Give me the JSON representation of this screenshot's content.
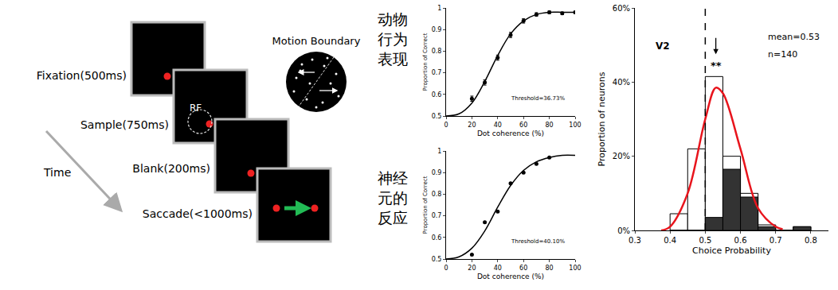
{
  "diagram": {
    "stages": [
      "Fixation(500ms)",
      "Sample(750ms)",
      "Blank(200ms)",
      "Saccade(<1000ms)"
    ],
    "time_label": "Time",
    "rf_label": "RF",
    "stimulus_label": "Motion Boundary",
    "behavior_label": [
      "动物",
      "行为",
      "表现"
    ],
    "neuron_label": [
      "神经",
      "元的",
      "反应"
    ]
  },
  "chart_data": [
    {
      "type": "scatter",
      "color": "#000000",
      "x": [
        20,
        30,
        40,
        50,
        60,
        70,
        80,
        90,
        100
      ],
      "values": [
        0.58,
        0.655,
        0.77,
        0.875,
        0.94,
        0.97,
        0.98,
        0.975,
        0.98
      ],
      "errors": [
        0.012,
        0.012,
        0.012,
        0.012,
        0.01,
        0.008,
        0.006,
        0.006,
        0.005
      ],
      "fit": {
        "x": [
          0,
          10,
          20,
          30,
          40,
          50,
          60,
          70,
          80,
          90,
          100
        ],
        "values": [
          0.5,
          0.51,
          0.56,
          0.66,
          0.78,
          0.88,
          0.94,
          0.97,
          0.98,
          0.98,
          0.98
        ]
      },
      "xlim": [
        0,
        100
      ],
      "ylim": [
        0.5,
        1
      ],
      "xticks": [
        0,
        20,
        40,
        60,
        80,
        100
      ],
      "yticks": [
        0.5,
        0.6,
        0.7,
        0.8,
        0.9,
        1
      ],
      "x_label": "Dot coherence (%)",
      "y_label": "Proportion of Correct",
      "annotation": "Threshold=36.73%"
    },
    {
      "type": "scatter",
      "color": "#000000",
      "x": [
        20,
        30,
        40,
        50,
        60,
        70,
        80
      ],
      "values": [
        0.52,
        0.67,
        0.72,
        0.85,
        0.9,
        0.94,
        0.97
      ],
      "fit": {
        "x": [
          0,
          10,
          20,
          30,
          40,
          50,
          60,
          70,
          80,
          90,
          100
        ],
        "values": [
          0.5,
          0.51,
          0.55,
          0.63,
          0.74,
          0.84,
          0.91,
          0.95,
          0.97,
          0.98,
          0.98
        ]
      },
      "xlim": [
        0,
        100
      ],
      "ylim": [
        0.5,
        1
      ],
      "xticks": [
        0,
        20,
        40,
        60,
        80,
        100
      ],
      "yticks": [
        0.5,
        0.6,
        0.7,
        0.8,
        0.9,
        1
      ],
      "x_label": "Dot coherence (%)",
      "y_label": "Proportion of Correct",
      "annotation": "Threshold=40.10%"
    },
    {
      "type": "histogram",
      "bins": [
        0.4,
        0.45,
        0.5,
        0.55,
        0.6,
        0.65,
        0.7,
        0.75,
        0.8
      ],
      "series": [
        {
          "color": "#ffffff",
          "values": [
            4.5,
            22,
            41.5,
            20,
            10,
            1.5,
            0,
            1
          ]
        },
        {
          "color": "#333333",
          "values": [
            0,
            0,
            3.5,
            16.5,
            9,
            1,
            0,
            1
          ]
        }
      ],
      "fit": {
        "color": "#e8141c",
        "x": [
          0.375,
          0.4,
          0.45,
          0.5,
          0.53,
          0.55,
          0.6,
          0.65,
          0.7,
          0.72
        ],
        "values": [
          0,
          1,
          10,
          30,
          38.5,
          37,
          22,
          6,
          1,
          0.3
        ]
      },
      "reference_line": 0.5,
      "mean_marker": {
        "x": 0.53,
        "label": "**"
      },
      "xlim": [
        0.3,
        0.85
      ],
      "ylim": [
        0,
        60
      ],
      "xticks": [
        0.3,
        0.4,
        0.5,
        0.6,
        0.7,
        0.8
      ],
      "yticks": [
        {
          "value": 0,
          "label": "0%"
        },
        {
          "value": 20,
          "label": "20%"
        },
        {
          "value": 40,
          "label": "40%"
        },
        {
          "value": 60,
          "label": "60%"
        }
      ],
      "x_label": "Choice Probability",
      "y_label": "Proportion of neurons",
      "annotations": [
        "V2",
        "mean=0.53",
        "n=140"
      ]
    }
  ]
}
